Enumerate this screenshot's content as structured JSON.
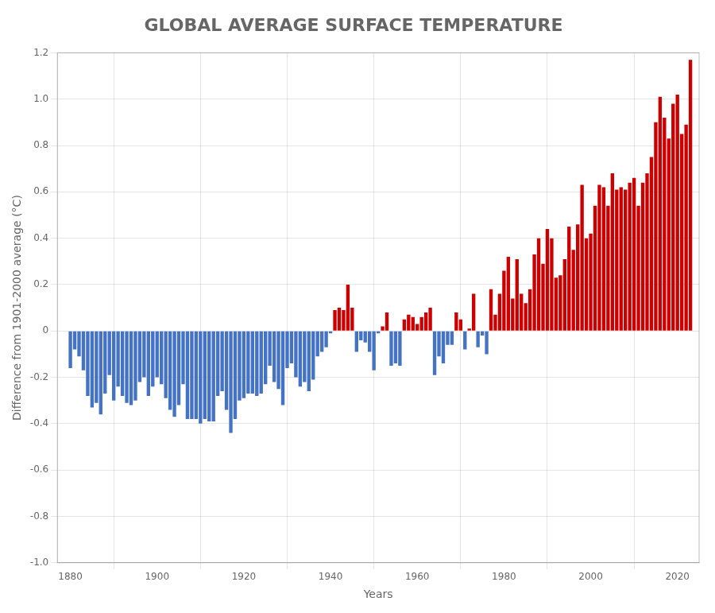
{
  "chart_data": {
    "type": "bar",
    "title": "GLOBAL AVERAGE SURFACE TEMPERATURE",
    "xlabel": "Years",
    "ylabel": "Difference from 1901-2000 average (°C)",
    "x": [
      1880,
      1881,
      1882,
      1883,
      1884,
      1885,
      1886,
      1887,
      1888,
      1889,
      1890,
      1891,
      1892,
      1893,
      1894,
      1895,
      1896,
      1897,
      1898,
      1899,
      1900,
      1901,
      1902,
      1903,
      1904,
      1905,
      1906,
      1907,
      1908,
      1909,
      1910,
      1911,
      1912,
      1913,
      1914,
      1915,
      1916,
      1917,
      1918,
      1919,
      1920,
      1921,
      1922,
      1923,
      1924,
      1925,
      1926,
      1927,
      1928,
      1929,
      1930,
      1931,
      1932,
      1933,
      1934,
      1935,
      1936,
      1937,
      1938,
      1939,
      1940,
      1941,
      1942,
      1943,
      1944,
      1945,
      1946,
      1947,
      1948,
      1949,
      1950,
      1951,
      1952,
      1953,
      1954,
      1955,
      1956,
      1957,
      1958,
      1959,
      1960,
      1961,
      1962,
      1963,
      1964,
      1965,
      1966,
      1967,
      1968,
      1969,
      1970,
      1971,
      1972,
      1973,
      1974,
      1975,
      1976,
      1977,
      1978,
      1979,
      1980,
      1981,
      1982,
      1983,
      1984,
      1985,
      1986,
      1987,
      1988,
      1989,
      1990,
      1991,
      1992,
      1993,
      1994,
      1995,
      1996,
      1997,
      1998,
      1999,
      2000,
      2001,
      2002,
      2003,
      2004,
      2005,
      2006,
      2007,
      2008,
      2009,
      2010,
      2011,
      2012,
      2013,
      2014,
      2015,
      2016,
      2017,
      2018,
      2019,
      2020,
      2021,
      2022,
      2023
    ],
    "values": [
      -0.16,
      -0.08,
      -0.11,
      -0.17,
      -0.28,
      -0.33,
      -0.31,
      -0.36,
      -0.27,
      -0.19,
      -0.3,
      -0.24,
      -0.28,
      -0.31,
      -0.32,
      -0.3,
      -0.22,
      -0.2,
      -0.28,
      -0.24,
      -0.2,
      -0.23,
      -0.29,
      -0.34,
      -0.37,
      -0.32,
      -0.23,
      -0.38,
      -0.38,
      -0.38,
      -0.4,
      -0.38,
      -0.39,
      -0.39,
      -0.28,
      -0.26,
      -0.34,
      -0.44,
      -0.38,
      -0.3,
      -0.29,
      -0.27,
      -0.27,
      -0.28,
      -0.27,
      -0.23,
      -0.15,
      -0.22,
      -0.25,
      -0.32,
      -0.16,
      -0.14,
      -0.2,
      -0.24,
      -0.22,
      -0.26,
      -0.21,
      -0.11,
      -0.09,
      -0.07,
      -0.01,
      0.09,
      0.1,
      0.09,
      0.2,
      0.1,
      -0.09,
      -0.04,
      -0.05,
      -0.09,
      -0.17,
      -0.01,
      0.02,
      0.08,
      -0.15,
      -0.14,
      -0.15,
      0.05,
      0.07,
      0.06,
      0.03,
      0.06,
      0.08,
      0.1,
      -0.19,
      -0.11,
      -0.14,
      -0.06,
      -0.06,
      0.08,
      0.05,
      -0.08,
      0.01,
      0.16,
      -0.07,
      -0.02,
      -0.1,
      0.18,
      0.07,
      0.16,
      0.26,
      0.32,
      0.14,
      0.31,
      0.16,
      0.12,
      0.18,
      0.33,
      0.4,
      0.29,
      0.44,
      0.4,
      0.23,
      0.24,
      0.31,
      0.45,
      0.35,
      0.46,
      0.63,
      0.4,
      0.42,
      0.54,
      0.63,
      0.62,
      0.54,
      0.68,
      0.61,
      0.62,
      0.61,
      0.64,
      0.66,
      0.54,
      0.64,
      0.68,
      0.75,
      0.9,
      1.01,
      0.92,
      0.83,
      0.98,
      1.02,
      0.85,
      0.89,
      1.17
    ],
    "colors": [
      "#4472c4",
      "#4472c4",
      "#4472c4",
      "#4472c4",
      "#4472c4",
      "#4472c4",
      "#4472c4",
      "#4472c4",
      "#4472c4",
      "#4472c4",
      "#4472c4",
      "#4472c4",
      "#4472c4",
      "#4472c4",
      "#4472c4",
      "#4472c4",
      "#4472c4",
      "#4472c4",
      "#4472c4",
      "#4472c4",
      "#4472c4",
      "#4472c4",
      "#4472c4",
      "#4472c4",
      "#4472c4",
      "#4472c4",
      "#4472c4",
      "#4472c4",
      "#4472c4",
      "#4472c4",
      "#4472c4",
      "#4472c4",
      "#4472c4",
      "#4472c4",
      "#4472c4",
      "#4472c4",
      "#4472c4",
      "#4472c4",
      "#4472c4",
      "#4472c4",
      "#4472c4",
      "#4472c4",
      "#4472c4",
      "#4472c4",
      "#4472c4",
      "#4472c4",
      "#4472c4",
      "#4472c4",
      "#4472c4",
      "#4472c4",
      "#4472c4",
      "#4472c4",
      "#4472c4",
      "#4472c4",
      "#4472c4",
      "#4472c4",
      "#4472c4",
      "#4472c4",
      "#4472c4",
      "#4472c4",
      "#4472c4",
      "#cc0000",
      "#cc0000",
      "#cc0000",
      "#cc0000",
      "#cc0000",
      "#4472c4",
      "#4472c4",
      "#4472c4",
      "#4472c4",
      "#4472c4",
      "#4472c4",
      "#cc0000",
      "#cc0000",
      "#4472c4",
      "#4472c4",
      "#4472c4",
      "#cc0000",
      "#cc0000",
      "#cc0000",
      "#cc0000",
      "#cc0000",
      "#cc0000",
      "#cc0000",
      "#4472c4",
      "#4472c4",
      "#4472c4",
      "#4472c4",
      "#4472c4",
      "#cc0000",
      "#cc0000",
      "#4472c4",
      "#cc0000",
      "#cc0000",
      "#4472c4",
      "#4472c4",
      "#4472c4",
      "#cc0000",
      "#cc0000",
      "#cc0000",
      "#cc0000",
      "#cc0000",
      "#cc0000",
      "#cc0000",
      "#cc0000",
      "#cc0000",
      "#cc0000",
      "#cc0000",
      "#cc0000",
      "#cc0000",
      "#cc0000",
      "#cc0000",
      "#cc0000",
      "#cc0000",
      "#cc0000",
      "#cc0000",
      "#cc0000",
      "#cc0000",
      "#cc0000",
      "#cc0000",
      "#cc0000",
      "#cc0000",
      "#cc0000",
      "#cc0000",
      "#cc0000",
      "#cc0000",
      "#cc0000",
      "#cc0000",
      "#cc0000",
      "#cc0000",
      "#cc0000",
      "#cc0000",
      "#cc0000",
      "#cc0000",
      "#cc0000",
      "#cc0000",
      "#cc0000",
      "#cc0000",
      "#cc0000",
      "#cc0000",
      "#cc0000",
      "#cc0000",
      "#cc0000",
      "#cc0000"
    ],
    "xlim": [
      1877,
      2025
    ],
    "xticks": [
      1880,
      1900,
      1920,
      1940,
      1960,
      1980,
      2000,
      2020
    ],
    "ylim": [
      -1,
      1.2
    ],
    "yticks": [
      {
        "value": -1,
        "label": "-1.0"
      },
      -0.8,
      -0.6,
      -0.4,
      -0.2,
      0,
      0.2,
      0.4,
      0.6,
      0.8,
      {
        "value": 1,
        "label": "1.0"
      },
      1.2
    ],
    "grid": true
  }
}
